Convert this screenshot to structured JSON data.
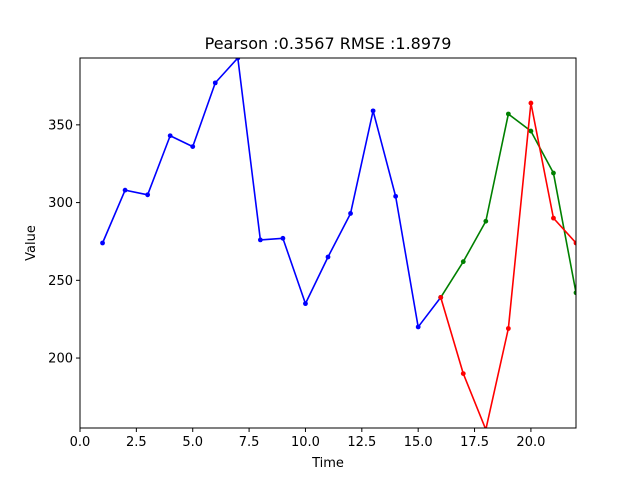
{
  "chart_data": {
    "type": "line",
    "title": "Pearson :0.3567  RMSE :1.8979",
    "xlabel": "Time",
    "ylabel": "Value",
    "xlim": [
      0,
      22
    ],
    "ylim": [
      155,
      393
    ],
    "xticks": [
      0.0,
      2.5,
      5.0,
      7.5,
      10.0,
      12.5,
      15.0,
      17.5,
      20.0
    ],
    "xtick_labels": [
      "0.0",
      "2.5",
      "5.0",
      "7.5",
      "10.0",
      "12.5",
      "15.0",
      "17.5",
      "20.0"
    ],
    "yticks": [
      200,
      250,
      300,
      350
    ],
    "ytick_labels": [
      "200",
      "250",
      "300",
      "350"
    ],
    "grid": false,
    "series": [
      {
        "color": "#0000ff",
        "x": [
          1,
          2,
          3,
          4,
          5,
          6,
          7,
          8,
          9,
          10,
          11,
          12,
          13,
          14,
          15,
          16
        ],
        "values": [
          274,
          308,
          305,
          343,
          336,
          377,
          393,
          276,
          277,
          235,
          265,
          293,
          359,
          304,
          220,
          239
        ]
      },
      {
        "color": "#008000",
        "x": [
          16,
          17,
          18,
          19,
          20,
          21,
          22
        ],
        "values": [
          239,
          262,
          288,
          357,
          346,
          319,
          242
        ]
      },
      {
        "color": "#ff0000",
        "x": [
          16,
          17,
          18,
          19,
          20,
          21,
          22
        ],
        "values": [
          239,
          190,
          154,
          219,
          364,
          290,
          274
        ]
      }
    ]
  }
}
